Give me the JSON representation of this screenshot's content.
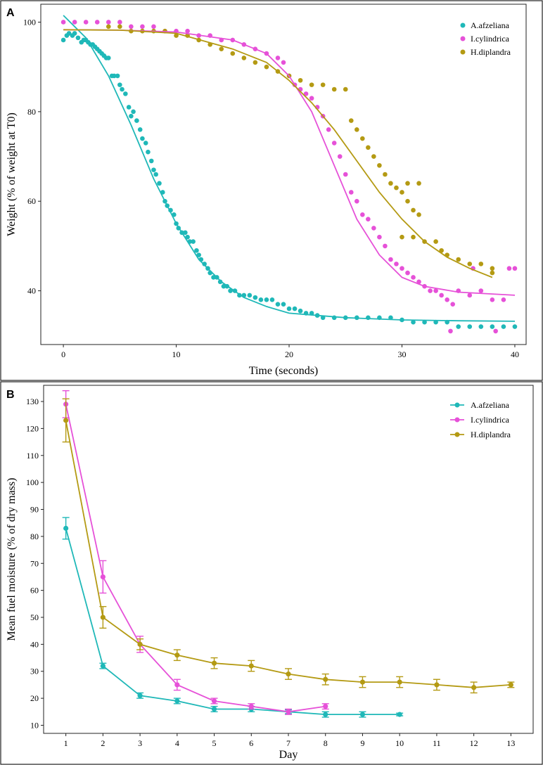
{
  "chart_data": [
    {
      "panel": "A",
      "type": "scatter",
      "xlabel": "Time (seconds)",
      "ylabel": "Weight (% of weight at T0)",
      "xlim": [
        -2,
        41
      ],
      "ylim": [
        28,
        104
      ],
      "xticks": [
        0,
        10,
        20,
        30,
        40
      ],
      "yticks": [
        40,
        60,
        80,
        100
      ],
      "legend_position": "top-right",
      "series": [
        {
          "name": "A.afzeliana",
          "color": "#1FB8B8",
          "points": [
            [
              0,
              96
            ],
            [
              0.3,
              97
            ],
            [
              0.5,
              97.5
            ],
            [
              0.8,
              97
            ],
            [
              1,
              97.5
            ],
            [
              1.3,
              96.5
            ],
            [
              1.6,
              95.5
            ],
            [
              1.8,
              96
            ],
            [
              2,
              96
            ],
            [
              2.2,
              95.5
            ],
            [
              2.4,
              95
            ],
            [
              2.6,
              95
            ],
            [
              2.8,
              94.5
            ],
            [
              3,
              94
            ],
            [
              3.2,
              93.5
            ],
            [
              3.4,
              93
            ],
            [
              3.6,
              92.5
            ],
            [
              3.8,
              92
            ],
            [
              4,
              92
            ],
            [
              4.3,
              88
            ],
            [
              4.5,
              88
            ],
            [
              4.8,
              88
            ],
            [
              5,
              86
            ],
            [
              5.2,
              85
            ],
            [
              5.5,
              84
            ],
            [
              5.8,
              81
            ],
            [
              6,
              79
            ],
            [
              6.2,
              80
            ],
            [
              6.5,
              78
            ],
            [
              6.8,
              76
            ],
            [
              7,
              74
            ],
            [
              7.3,
              73
            ],
            [
              7.5,
              71
            ],
            [
              7.8,
              69
            ],
            [
              8,
              67
            ],
            [
              8.2,
              66
            ],
            [
              8.5,
              64
            ],
            [
              8.8,
              62
            ],
            [
              9,
              60
            ],
            [
              9.2,
              59
            ],
            [
              9.5,
              58
            ],
            [
              9.8,
              57
            ],
            [
              10,
              55
            ],
            [
              10.2,
              54
            ],
            [
              10.5,
              53
            ],
            [
              10.8,
              53
            ],
            [
              11,
              52
            ],
            [
              11.2,
              51
            ],
            [
              11.5,
              51
            ],
            [
              11.8,
              49
            ],
            [
              12,
              48
            ],
            [
              12.2,
              47
            ],
            [
              12.5,
              46
            ],
            [
              12.8,
              45
            ],
            [
              13,
              44
            ],
            [
              13.3,
              43
            ],
            [
              13.6,
              43
            ],
            [
              13.9,
              42
            ],
            [
              14.2,
              41
            ],
            [
              14.5,
              41
            ],
            [
              14.8,
              40
            ],
            [
              15.2,
              40
            ],
            [
              15.6,
              39
            ],
            [
              16,
              39
            ],
            [
              16.5,
              39
            ],
            [
              17,
              38.5
            ],
            [
              17.5,
              38
            ],
            [
              18,
              38
            ],
            [
              18.5,
              38
            ],
            [
              19,
              37
            ],
            [
              19.5,
              37
            ],
            [
              20,
              36
            ],
            [
              20.5,
              36
            ],
            [
              21,
              35.5
            ],
            [
              21.5,
              35
            ],
            [
              22,
              35
            ],
            [
              22.5,
              34.5
            ],
            [
              23,
              34
            ],
            [
              24,
              34
            ],
            [
              25,
              34
            ],
            [
              26,
              34
            ],
            [
              27,
              34
            ],
            [
              28,
              34
            ],
            [
              29,
              34
            ],
            [
              30,
              33.5
            ],
            [
              31,
              33
            ],
            [
              32,
              33
            ],
            [
              33,
              33
            ],
            [
              34,
              33
            ],
            [
              35,
              32
            ],
            [
              36,
              32
            ],
            [
              37,
              32
            ],
            [
              38,
              32
            ],
            [
              39,
              32
            ],
            [
              40,
              32
            ]
          ],
          "curve": [
            [
              0,
              101.5
            ],
            [
              2,
              96.5
            ],
            [
              4,
              88
            ],
            [
              6,
              77
            ],
            [
              8,
              65
            ],
            [
              10,
              55
            ],
            [
              12,
              47
            ],
            [
              14,
              42
            ],
            [
              16,
              38.5
            ],
            [
              18,
              36.5
            ],
            [
              20,
              35
            ],
            [
              25,
              34
            ],
            [
              30,
              33.5
            ],
            [
              35,
              33.3
            ],
            [
              40,
              33.2
            ]
          ]
        },
        {
          "name": "I.cylindrica",
          "color": "#E651D8",
          "points": [
            [
              0,
              100
            ],
            [
              1,
              100
            ],
            [
              2,
              100
            ],
            [
              3,
              100
            ],
            [
              4,
              100
            ],
            [
              5,
              100
            ],
            [
              6,
              99
            ],
            [
              7,
              99
            ],
            [
              8,
              99
            ],
            [
              9,
              98
            ],
            [
              10,
              98
            ],
            [
              11,
              98
            ],
            [
              12,
              97
            ],
            [
              13,
              97
            ],
            [
              14,
              96
            ],
            [
              15,
              96
            ],
            [
              16,
              95
            ],
            [
              17,
              94
            ],
            [
              18,
              93
            ],
            [
              19,
              92
            ],
            [
              19.5,
              91
            ],
            [
              20,
              88
            ],
            [
              20.5,
              86
            ],
            [
              21,
              85
            ],
            [
              21.5,
              84
            ],
            [
              22,
              83
            ],
            [
              22.5,
              81
            ],
            [
              23,
              79
            ],
            [
              23.5,
              76
            ],
            [
              24,
              73
            ],
            [
              24.5,
              70
            ],
            [
              25,
              66
            ],
            [
              25.5,
              62
            ],
            [
              26,
              60
            ],
            [
              26.5,
              57
            ],
            [
              27,
              56
            ],
            [
              27.5,
              54
            ],
            [
              28,
              52
            ],
            [
              28.5,
              50
            ],
            [
              29,
              47
            ],
            [
              29.5,
              46
            ],
            [
              30,
              45
            ],
            [
              30.5,
              44
            ],
            [
              31,
              43
            ],
            [
              31.5,
              42
            ],
            [
              32,
              41
            ],
            [
              32.5,
              40
            ],
            [
              33,
              40
            ],
            [
              33.5,
              39
            ],
            [
              34,
              38
            ],
            [
              34.5,
              37
            ],
            [
              35,
              40
            ],
            [
              36,
              39
            ],
            [
              37,
              40
            ],
            [
              38,
              38
            ],
            [
              39,
              38
            ],
            [
              39.5,
              45
            ],
            [
              40,
              45
            ],
            [
              34.3,
              31
            ],
            [
              36.3,
              45
            ],
            [
              38.3,
              31
            ]
          ],
          "curve": [
            [
              0,
              98.3
            ],
            [
              5,
              98.2
            ],
            [
              10,
              97.8
            ],
            [
              15,
              96
            ],
            [
              18,
              93
            ],
            [
              20,
              88
            ],
            [
              22,
              80
            ],
            [
              24,
              68
            ],
            [
              26,
              56
            ],
            [
              28,
              48
            ],
            [
              30,
              43
            ],
            [
              32,
              41
            ],
            [
              35,
              39.7
            ],
            [
              40,
              39
            ]
          ]
        },
        {
          "name": "H.diplandra",
          "color": "#B49A13",
          "points": [
            [
              4,
              99
            ],
            [
              5,
              99
            ],
            [
              6,
              98
            ],
            [
              7,
              98
            ],
            [
              8,
              98
            ],
            [
              9,
              98
            ],
            [
              10,
              97
            ],
            [
              11,
              97
            ],
            [
              12,
              96
            ],
            [
              13,
              95
            ],
            [
              14,
              94
            ],
            [
              15,
              93
            ],
            [
              16,
              92
            ],
            [
              17,
              91
            ],
            [
              18,
              90
            ],
            [
              19,
              89
            ],
            [
              20,
              88
            ],
            [
              21,
              87
            ],
            [
              22,
              86
            ],
            [
              23,
              86
            ],
            [
              24,
              85
            ],
            [
              25,
              85
            ],
            [
              25.5,
              78
            ],
            [
              26,
              76
            ],
            [
              26.5,
              74
            ],
            [
              27,
              72
            ],
            [
              27.5,
              70
            ],
            [
              28,
              68
            ],
            [
              28.5,
              66
            ],
            [
              29,
              64
            ],
            [
              29.5,
              63
            ],
            [
              30,
              62
            ],
            [
              30.5,
              60
            ],
            [
              31,
              58
            ],
            [
              31.5,
              57
            ],
            [
              30,
              52
            ],
            [
              31,
              52
            ],
            [
              32,
              51
            ],
            [
              33,
              51
            ],
            [
              33.5,
              49
            ],
            [
              34,
              48
            ],
            [
              35,
              47
            ],
            [
              36,
              46
            ],
            [
              37,
              46
            ],
            [
              38,
              45
            ],
            [
              30.5,
              64
            ],
            [
              31.5,
              64
            ],
            [
              38,
              44
            ]
          ],
          "curve": [
            [
              0,
              98.3
            ],
            [
              5,
              98.2
            ],
            [
              10,
              97.5
            ],
            [
              15,
              94
            ],
            [
              18,
              91
            ],
            [
              20,
              87
            ],
            [
              22,
              82
            ],
            [
              24,
              76
            ],
            [
              26,
              69
            ],
            [
              28,
              62
            ],
            [
              30,
              56
            ],
            [
              32,
              51
            ],
            [
              34,
              47.5
            ],
            [
              36,
              45
            ],
            [
              38,
              43
            ]
          ]
        }
      ]
    },
    {
      "panel": "B",
      "type": "line",
      "xlabel": "Day",
      "ylabel": "Mean fuel moisture (% of dry mass)",
      "xlim": [
        0.4,
        13.6
      ],
      "ylim": [
        7,
        136
      ],
      "xticks": [
        1,
        2,
        3,
        4,
        5,
        6,
        7,
        8,
        9,
        10,
        11,
        12,
        13
      ],
      "yticks": [
        10,
        20,
        30,
        40,
        50,
        60,
        70,
        80,
        90,
        100,
        110,
        120,
        130
      ],
      "legend_position": "top-right",
      "series": [
        {
          "name": "A.afzeliana",
          "color": "#1FB8B8",
          "x": [
            1,
            2,
            3,
            4,
            5,
            6,
            7,
            8,
            9,
            10
          ],
          "values": [
            83,
            32,
            21,
            19,
            16,
            16,
            15,
            14,
            14,
            14
          ],
          "err": [
            4,
            1,
            1,
            1,
            1,
            1,
            0.7,
            1,
            1,
            0.5
          ]
        },
        {
          "name": "I.cylindrica",
          "color": "#E651D8",
          "x": [
            1,
            2,
            3,
            4,
            5,
            6,
            7,
            8
          ],
          "values": [
            129,
            65,
            40,
            25,
            19,
            17,
            15,
            17
          ],
          "err": [
            5,
            6,
            3,
            2,
            1,
            1,
            1,
            1
          ]
        },
        {
          "name": "H.diplandra",
          "color": "#B49A13",
          "x": [
            1,
            2,
            3,
            4,
            5,
            6,
            7,
            8,
            9,
            10,
            11,
            12,
            13
          ],
          "values": [
            123,
            50,
            40,
            36,
            33,
            32,
            29,
            27,
            26,
            26,
            25,
            24,
            25
          ],
          "err": [
            8,
            4,
            2,
            2,
            2,
            2,
            2,
            2,
            2,
            2,
            2,
            2,
            1
          ]
        }
      ]
    }
  ]
}
